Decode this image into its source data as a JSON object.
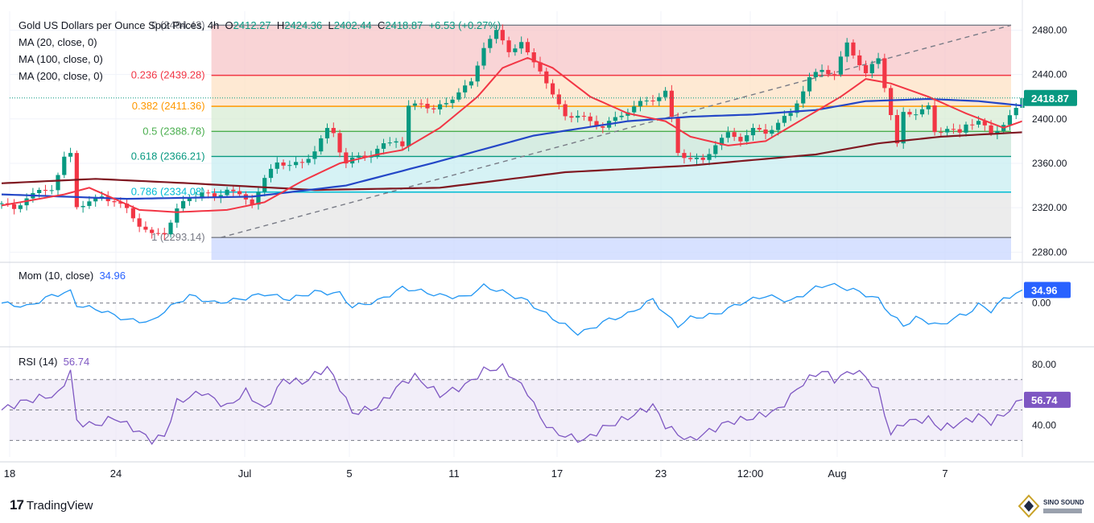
{
  "header": {
    "title": "Gold US Dollars per Ounce Spot Prices, 4h",
    "open_label": "O",
    "open": "2412.27",
    "high_label": "H",
    "high": "2424.36",
    "low_label": "L",
    "low": "2402.44",
    "close_label": "C",
    "close": "2418.87",
    "change": "+6.53 (+0.27%)"
  },
  "legends": {
    "ma20": "MA (20, close, 0)",
    "ma100": "MA (100, close, 0)",
    "ma200": "MA (200, close, 0)",
    "mom_label": "Mom (10, close)",
    "mom_value": "34.96",
    "rsi_label": "RSI (14)",
    "rsi_value": "56.74"
  },
  "branding": {
    "logo_text": "TradingView",
    "watermark_text": "SINO SOUND"
  },
  "colors": {
    "up": "#089981",
    "down": "#f23645",
    "ma20": "#f23645",
    "ma100": "#2447c7",
    "ma200": "#801922",
    "mom": "#2196f3",
    "rsi": "#7e57c2",
    "trend": "#787b86"
  },
  "chart_data": [
    {
      "type": "candlestick",
      "panel": "price",
      "x_ticks": [
        "18",
        "24",
        "Jul",
        "5",
        "11",
        "17",
        "23",
        "12:00",
        "Aug",
        "7"
      ],
      "y_ticks": [
        "2480.00",
        "2440.00",
        "2400.00",
        "2360.00",
        "2320.00",
        "2280.00"
      ],
      "ylim": [
        2273,
        2497
      ],
      "last_price": "2418.87",
      "fibonacci": [
        {
          "level": "0",
          "price": 2484.43,
          "label": "0 (2484.43)",
          "color": "#787b86"
        },
        {
          "level": "0.236",
          "price": 2439.28,
          "label": "0.236 (2439.28)",
          "color": "#f23645"
        },
        {
          "level": "0.382",
          "price": 2411.36,
          "label": "0.382 (2411.36)",
          "color": "#ff9800"
        },
        {
          "level": "0.5",
          "price": 2388.78,
          "label": "0.5 (2388.78)",
          "color": "#4caf50"
        },
        {
          "level": "0.618",
          "price": 2366.21,
          "label": "0.618 (2366.21)",
          "color": "#089981"
        },
        {
          "level": "0.786",
          "price": 2334.08,
          "label": "0.786 (2334.08)",
          "color": "#00bcd4"
        },
        {
          "level": "1",
          "price": 2293.14,
          "label": "1 (2293.14)",
          "color": "#787b86"
        }
      ],
      "close_path": [
        [
          0,
          2324
        ],
        [
          2,
          2318
        ],
        [
          4,
          2330
        ],
        [
          6,
          2334
        ],
        [
          8,
          2338
        ],
        [
          9,
          2350
        ],
        [
          10,
          2364
        ],
        [
          11,
          2368
        ],
        [
          12,
          2322
        ],
        [
          14,
          2325
        ],
        [
          16,
          2330
        ],
        [
          18,
          2326
        ],
        [
          20,
          2318
        ],
        [
          22,
          2305
        ],
        [
          24,
          2295
        ],
        [
          26,
          2298
        ],
        [
          28,
          2318
        ],
        [
          30,
          2330
        ],
        [
          32,
          2334
        ],
        [
          34,
          2328
        ],
        [
          36,
          2338
        ],
        [
          38,
          2330
        ],
        [
          40,
          2325
        ],
        [
          42,
          2345
        ],
        [
          44,
          2362
        ],
        [
          46,
          2358
        ],
        [
          48,
          2360
        ],
        [
          50,
          2372
        ],
        [
          52,
          2390
        ],
        [
          53,
          2388
        ],
        [
          54,
          2372
        ],
        [
          55,
          2360
        ],
        [
          57,
          2366
        ],
        [
          59,
          2368
        ],
        [
          61,
          2376
        ],
        [
          63,
          2382
        ],
        [
          64,
          2376
        ],
        [
          65,
          2410
        ],
        [
          67,
          2415
        ],
        [
          69,
          2408
        ],
        [
          71,
          2414
        ],
        [
          73,
          2425
        ],
        [
          75,
          2432
        ],
        [
          77,
          2466
        ],
        [
          78,
          2472
        ],
        [
          79,
          2478
        ],
        [
          81,
          2462
        ],
        [
          83,
          2468
        ],
        [
          84,
          2458
        ],
        [
          86,
          2445
        ],
        [
          88,
          2420
        ],
        [
          90,
          2404
        ],
        [
          92,
          2402
        ],
        [
          94,
          2398
        ],
        [
          96,
          2393
        ],
        [
          98,
          2400
        ],
        [
          100,
          2408
        ],
        [
          102,
          2414
        ],
        [
          104,
          2418
        ],
        [
          106,
          2424
        ],
        [
          107,
          2400
        ],
        [
          108,
          2370
        ],
        [
          110,
          2364
        ],
        [
          112,
          2362
        ],
        [
          114,
          2378
        ],
        [
          116,
          2386
        ],
        [
          118,
          2382
        ],
        [
          120,
          2390
        ],
        [
          122,
          2388
        ],
        [
          124,
          2396
        ],
        [
          126,
          2405
        ],
        [
          127,
          2416
        ],
        [
          129,
          2436
        ],
        [
          131,
          2445
        ],
        [
          133,
          2440
        ],
        [
          135,
          2468
        ],
        [
          137,
          2450
        ],
        [
          138,
          2440
        ],
        [
          140,
          2455
        ],
        [
          141,
          2430
        ],
        [
          142,
          2404
        ],
        [
          143,
          2376
        ],
        [
          144,
          2405
        ],
        [
          146,
          2406
        ],
        [
          148,
          2410
        ],
        [
          149,
          2388
        ],
        [
          151,
          2392
        ],
        [
          153,
          2386
        ],
        [
          154,
          2396
        ],
        [
          156,
          2398
        ],
        [
          158,
          2386
        ],
        [
          160,
          2396
        ],
        [
          162,
          2408
        ],
        [
          163,
          2418.87
        ]
      ],
      "series": [
        {
          "name": "MA (20, close, 0)",
          "values": [
            [
              0,
              2322
            ],
            [
              10,
              2332
            ],
            [
              14,
              2338
            ],
            [
              22,
              2318
            ],
            [
              28,
              2316
            ],
            [
              36,
              2318
            ],
            [
              42,
              2325
            ],
            [
              48,
              2344
            ],
            [
              54,
              2360
            ],
            [
              60,
              2368
            ],
            [
              64,
              2372
            ],
            [
              70,
              2392
            ],
            [
              76,
              2420
            ],
            [
              80,
              2446
            ],
            [
              84,
              2455
            ],
            [
              88,
              2446
            ],
            [
              94,
              2420
            ],
            [
              100,
              2405
            ],
            [
              106,
              2398
            ],
            [
              110,
              2384
            ],
            [
              116,
              2376
            ],
            [
              122,
              2380
            ],
            [
              128,
              2400
            ],
            [
              134,
              2420
            ],
            [
              138,
              2436
            ],
            [
              142,
              2432
            ],
            [
              148,
              2420
            ],
            [
              154,
              2405
            ],
            [
              160,
              2392
            ],
            [
              163,
              2398
            ]
          ]
        },
        {
          "name": "MA (100, close, 0)",
          "values": [
            [
              0,
              2332
            ],
            [
              20,
              2328
            ],
            [
              40,
              2330
            ],
            [
              55,
              2340
            ],
            [
              70,
              2362
            ],
            [
              85,
              2385
            ],
            [
              100,
              2398
            ],
            [
              110,
              2402
            ],
            [
              120,
              2404
            ],
            [
              130,
              2408
            ],
            [
              138,
              2416
            ],
            [
              148,
              2418
            ],
            [
              156,
              2416
            ],
            [
              163,
              2412
            ]
          ]
        },
        {
          "name": "MA (200, close, 0)",
          "values": [
            [
              0,
              2342
            ],
            [
              15,
              2346
            ],
            [
              30,
              2342
            ],
            [
              50,
              2336
            ],
            [
              70,
              2338
            ],
            [
              90,
              2352
            ],
            [
              110,
              2358
            ],
            [
              130,
              2368
            ],
            [
              140,
              2378
            ],
            [
              150,
              2384
            ],
            [
              163,
              2388
            ]
          ]
        }
      ]
    },
    {
      "type": "line",
      "panel": "momentum",
      "title": "Mom (10, close)",
      "last_value": "34.96",
      "y_ticks": [
        "0.00"
      ],
      "ylim": [
        -110,
        100
      ],
      "series": [
        {
          "name": "Mom (10, close)",
          "values": [
            [
              0,
              0
            ],
            [
              4,
              -10
            ],
            [
              8,
              20
            ],
            [
              11,
              30
            ],
            [
              12,
              -5
            ],
            [
              16,
              -20
            ],
            [
              20,
              -45
            ],
            [
              24,
              -50
            ],
            [
              26,
              -20
            ],
            [
              30,
              20
            ],
            [
              34,
              0
            ],
            [
              38,
              10
            ],
            [
              42,
              25
            ],
            [
              46,
              10
            ],
            [
              50,
              30
            ],
            [
              54,
              25
            ],
            [
              56,
              -10
            ],
            [
              60,
              5
            ],
            [
              64,
              40
            ],
            [
              66,
              35
            ],
            [
              70,
              20
            ],
            [
              74,
              15
            ],
            [
              77,
              45
            ],
            [
              80,
              30
            ],
            [
              84,
              5
            ],
            [
              86,
              -20
            ],
            [
              90,
              -60
            ],
            [
              92,
              -80
            ],
            [
              94,
              -70
            ],
            [
              96,
              -50
            ],
            [
              100,
              -30
            ],
            [
              104,
              10
            ],
            [
              106,
              -30
            ],
            [
              108,
              -60
            ],
            [
              110,
              -40
            ],
            [
              114,
              -30
            ],
            [
              118,
              0
            ],
            [
              122,
              20
            ],
            [
              126,
              5
            ],
            [
              130,
              40
            ],
            [
              132,
              50
            ],
            [
              136,
              35
            ],
            [
              140,
              10
            ],
            [
              142,
              -30
            ],
            [
              144,
              -60
            ],
            [
              146,
              -40
            ],
            [
              150,
              -60
            ],
            [
              152,
              -40
            ],
            [
              154,
              -30
            ],
            [
              156,
              -5
            ],
            [
              158,
              -20
            ],
            [
              160,
              10
            ],
            [
              163,
              34.96
            ]
          ]
        }
      ]
    },
    {
      "type": "line",
      "panel": "rsi",
      "title": "RSI (14)",
      "last_value": "56.74",
      "y_ticks": [
        "80.00",
        "40.00"
      ],
      "ylim": [
        18,
        90
      ],
      "bands": [
        70,
        50,
        30
      ],
      "series": [
        {
          "name": "RSI (14)",
          "values": [
            [
              0,
              50
            ],
            [
              3,
              55
            ],
            [
              6,
              58
            ],
            [
              9,
              60
            ],
            [
              11,
              76
            ],
            [
              12,
              42
            ],
            [
              15,
              40
            ],
            [
              18,
              45
            ],
            [
              21,
              38
            ],
            [
              24,
              30
            ],
            [
              26,
              33
            ],
            [
              28,
              55
            ],
            [
              32,
              62
            ],
            [
              36,
              52
            ],
            [
              39,
              62
            ],
            [
              42,
              50
            ],
            [
              45,
              70
            ],
            [
              48,
              68
            ],
            [
              52,
              78
            ],
            [
              54,
              65
            ],
            [
              56,
              48
            ],
            [
              60,
              52
            ],
            [
              64,
              68
            ],
            [
              66,
              72
            ],
            [
              70,
              60
            ],
            [
              74,
              66
            ],
            [
              77,
              76
            ],
            [
              80,
              78
            ],
            [
              84,
              62
            ],
            [
              86,
              45
            ],
            [
              88,
              36
            ],
            [
              90,
              33
            ],
            [
              93,
              30
            ],
            [
              96,
              38
            ],
            [
              100,
              45
            ],
            [
              104,
              53
            ],
            [
              106,
              40
            ],
            [
              108,
              34
            ],
            [
              110,
              30
            ],
            [
              113,
              36
            ],
            [
              116,
              42
            ],
            [
              120,
              45
            ],
            [
              124,
              50
            ],
            [
              128,
              68
            ],
            [
              131,
              76
            ],
            [
              133,
              70
            ],
            [
              136,
              76
            ],
            [
              138,
              72
            ],
            [
              140,
              62
            ],
            [
              142,
              34
            ],
            [
              144,
              42
            ],
            [
              148,
              44
            ],
            [
              150,
              38
            ],
            [
              152,
              40
            ],
            [
              156,
              46
            ],
            [
              158,
              42
            ],
            [
              160,
              47
            ],
            [
              163,
              56.74
            ]
          ]
        }
      ]
    }
  ]
}
